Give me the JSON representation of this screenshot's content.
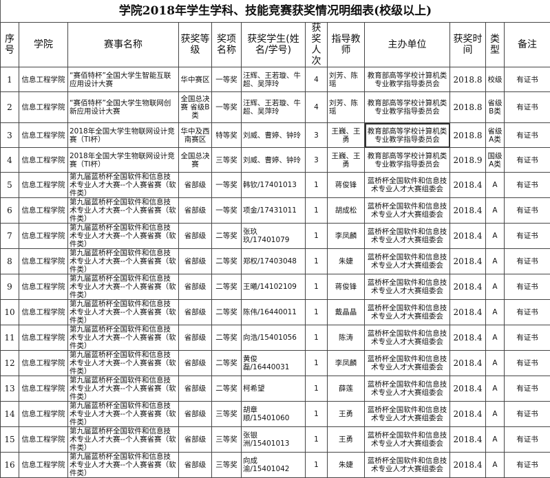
{
  "title": "学院2018年学生学科、技能竞赛获奖情况明细表(校级以上)",
  "headers": [
    "序号",
    "学院",
    "赛事名称",
    "获奖等级",
    "奖项名称",
    "获奖学生(姓名/学号)",
    "获奖人次",
    "指导教师",
    "主办单位",
    "获奖时间",
    "类型",
    "备注"
  ],
  "rows": [
    [
      "1",
      "信息工程学院",
      "“赛佰特杯”全国大学生智能互联应用设计大赛",
      "华中赛区",
      "一等奖",
      "汪辉、王若璇、牛超、吴萍玲",
      "4",
      "刘芳、陈瑶",
      "教育部高等学校计算机类专业教学指导委员会",
      "2018.8",
      "校级",
      "有证书"
    ],
    [
      "2",
      "信息工程学院",
      "“赛佰特杯”全国大学生物联网创新应用设计大赛",
      "全国总决赛 省级B类",
      "一等奖",
      "汪辉、王若璇、牛超、吴萍玲",
      "4",
      "刘芳、陈瑶",
      "教育部高等学校计算机类专业教学指导委员会",
      "2018.8",
      "省级B类",
      "有证书"
    ],
    [
      "3",
      "信息工程学院",
      "2018年全国大学生物联网设计竞赛（TI杯）",
      "华中及西南赛区",
      "特等奖",
      "刘威、曹婷、钟玲",
      "3",
      "王巍、王勇",
      "教育部高等学校计算机类专业教学指导委员会",
      "2018.8",
      "省级A类",
      "有证书"
    ],
    [
      "4",
      "信息工程学院",
      "2018年全国大学生物联网设计竞赛（TI杯）",
      "全国总决赛",
      "三等奖",
      "刘威、曹婷、钟玲",
      "3",
      "王巍、王勇",
      "教育部高等学校计算机类专业教学指导委员会",
      "2018.9",
      "国级A类",
      "有证书"
    ],
    [
      "5",
      "信息工程学院",
      "第九届蓝桥杯全国软件和信息技术专业人才大赛--个人赛省赛（软件类）",
      "省部级",
      "一等奖",
      "韩钦/17401013",
      "1",
      "蒋俊锋",
      "蓝桥杯全国软件和信息技术专业人才大赛组委会",
      "2018.4",
      "A",
      "有证书"
    ],
    [
      "6",
      "信息工程学院",
      "第九届蓝桥杯全国软件和信息技术专业人才大赛--个人赛省赛（软件类）",
      "省部级",
      "一等奖",
      "项金/17431011",
      "1",
      "胡成松",
      "蓝桥杯全国软件和信息技术专业人才大赛组委会",
      "2018.4",
      "A",
      "有证书"
    ],
    [
      "7",
      "信息工程学院",
      "第九届蓝桥杯全国软件和信息技术专业人才大赛--个人赛省赛（软件类）",
      "省部级",
      "二等奖",
      "张玖玖/17401079",
      "1",
      "李凤麟",
      "蓝桥杯全国软件和信息技术专业人才大赛组委会",
      "2018.4",
      "A",
      "有证书"
    ],
    [
      "8",
      "信息工程学院",
      "第九届蓝桥杯全国软件和信息技术专业人才大赛--个人赛省赛（软件类）",
      "省部级",
      "二等奖",
      "郑权/17403048",
      "1",
      "朱婕",
      "蓝桥杯全国软件和信息技术专业人才大赛组委会",
      "2018.4",
      "A",
      "有证书"
    ],
    [
      "9",
      "信息工程学院",
      "第九届蓝桥杯全国软件和信息技术专业人才大赛--个人赛省赛（软件类）",
      "省部级",
      "二等奖",
      "王曦/14102109",
      "1",
      "蒋俊锋",
      "蓝桥杯全国软件和信息技术专业人才大赛组委会",
      "2018.4",
      "A",
      "有证书"
    ],
    [
      "10",
      "信息工程学院",
      "第九届蓝桥杯全国软件和信息技术专业人才大赛--个人赛省赛（软件类）",
      "省部级",
      "二等奖",
      "陈伟/16440011",
      "1",
      "戴晶晶",
      "蓝桥杯全国软件和信息技术专业人才大赛组委会",
      "2018.4",
      "A",
      "有证书"
    ],
    [
      "11",
      "信息工程学院",
      "第九届蓝桥杯全国软件和信息技术专业人才大赛--个人赛省赛（软件类）",
      "省部级",
      "二等奖",
      "向浩/15401056",
      "1",
      "陈涛",
      "蓝桥杯全国软件和信息技术专业人才大赛组委会",
      "2018.4",
      "A",
      "有证书"
    ],
    [
      "12",
      "信息工程学院",
      "第九届蓝桥杯全国软件和信息技术专业人才大赛--个人赛省赛（软件类）",
      "省部级",
      "二等奖",
      "黄俊磊/16440031",
      "1",
      "李凤麟",
      "蓝桥杯全国软件和信息技术专业人才大赛组委会",
      "2018.4",
      "A",
      "有证书"
    ],
    [
      "13",
      "信息工程学院",
      "第九届蓝桥杯全国软件和信息技术专业人才大赛--个人赛省赛（软件类）",
      "省部级",
      "二等奖",
      "柯希望",
      "1",
      "薛莲",
      "蓝桥杯全国软件和信息技术专业人才大赛组委会",
      "2018.4",
      "A",
      "有证书"
    ],
    [
      "14",
      "信息工程学院",
      "第九届蓝桥杯全国软件和信息技术专业人才大赛--个人赛省赛（软件类）",
      "省部级",
      "三等奖",
      "胡章顺/15401060",
      "1",
      "王勇",
      "蓝桥杯全国软件和信息技术专业人才大赛组委会",
      "2018.4",
      "A",
      "有证书"
    ],
    [
      "15",
      "信息工程学院",
      "第九届蓝桥杯全国软件和信息技术专业人才大赛--个人赛省赛（软件类）",
      "省部级",
      "三等奖",
      "张银洲/15401013",
      "1",
      "王勇",
      "蓝桥杯全国软件和信息技术专业人才大赛组委会",
      "2018.4",
      "A",
      "有证书"
    ],
    [
      "16",
      "信息工程学院",
      "第九届蓝桥杯全国软件和信息技术专业人才大赛--个人赛省赛（软件类）",
      "省部级",
      "三等奖",
      "向成渝/15401042",
      "1",
      "朱婕",
      "蓝桥杯全国软件和信息技术专业人才大赛组委会",
      "2018.4",
      "A",
      "有证书"
    ]
  ]
}
